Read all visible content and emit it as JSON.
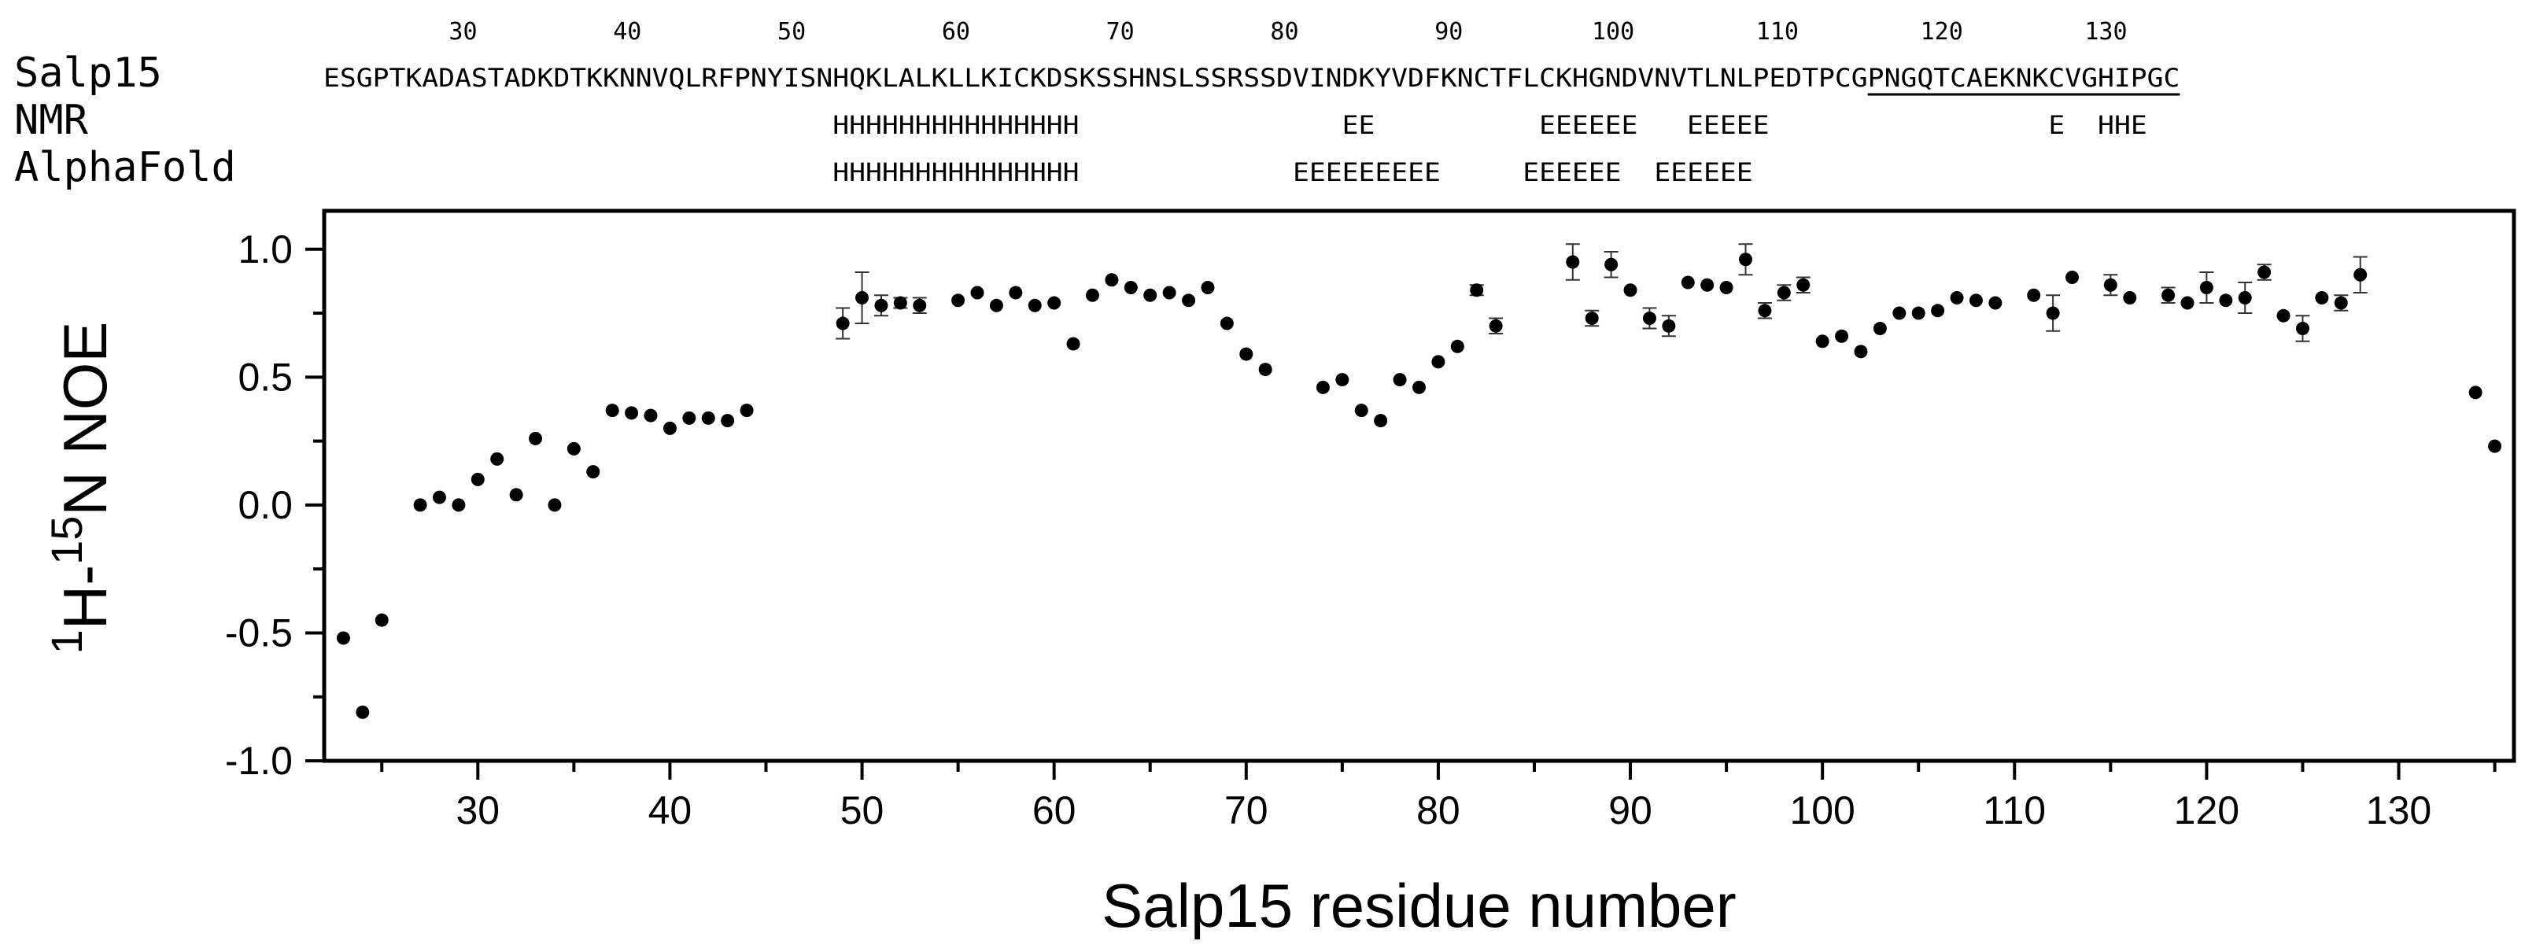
{
  "chart_data": {
    "type": "scatter",
    "xlabel": "Salp15 residue number",
    "ylabel_parts": {
      "sup1": "1",
      "h": "H-",
      "sup2": "15",
      "rest": "N NOE"
    },
    "xlim": [
      22,
      136
    ],
    "ylim": [
      -1.0,
      1.15
    ],
    "xticks": [
      30,
      40,
      50,
      60,
      70,
      80,
      90,
      100,
      110,
      120,
      130
    ],
    "yticks": [
      -1.0,
      -0.5,
      0.0,
      0.5,
      1.0
    ],
    "ytick_labels": [
      "-1.0",
      "-0.5",
      "0.0",
      "0.5",
      "1.0"
    ],
    "grid": false,
    "sequence": {
      "label": "Salp15",
      "start": 22,
      "text": "ESGPTKADASTADKDTKKNNVQLRFPNYISNHQKLALKLLKICKDSKSSHNSLSSRSSDVINDKYVDFKNCTFLCKHGNDVNVTLNLPEDTPCGPNGQTCAEKNKCVGHIPGC",
      "underline_range": [
        116,
        134
      ]
    },
    "ruler_ticks": [
      30,
      40,
      50,
      60,
      70,
      80,
      90,
      100,
      110,
      120,
      130
    ],
    "tracks": [
      {
        "label": "NMR",
        "text": "                               HHHHHHHHHHHHHHH                EE          EEEEEE   EEEEE                 E  HHE"
      },
      {
        "label": "AlphaFold",
        "text": "                               HHHHHHHHHHHHHHH             EEEEEEEEE     EEEEEE  EEEEEE"
      }
    ],
    "points": [
      {
        "x": 23,
        "y": -0.52
      },
      {
        "x": 24,
        "y": -0.81
      },
      {
        "x": 25,
        "y": -0.45
      },
      {
        "x": 27,
        "y": 0.0
      },
      {
        "x": 28,
        "y": 0.03
      },
      {
        "x": 29,
        "y": 0.0
      },
      {
        "x": 30,
        "y": 0.1
      },
      {
        "x": 31,
        "y": 0.18
      },
      {
        "x": 32,
        "y": 0.04
      },
      {
        "x": 33,
        "y": 0.26
      },
      {
        "x": 34,
        "y": 0.0
      },
      {
        "x": 35,
        "y": 0.22
      },
      {
        "x": 36,
        "y": 0.13
      },
      {
        "x": 37,
        "y": 0.37
      },
      {
        "x": 38,
        "y": 0.36
      },
      {
        "x": 39,
        "y": 0.35
      },
      {
        "x": 40,
        "y": 0.3
      },
      {
        "x": 41,
        "y": 0.34
      },
      {
        "x": 42,
        "y": 0.34
      },
      {
        "x": 43,
        "y": 0.33
      },
      {
        "x": 44,
        "y": 0.37
      },
      {
        "x": 49,
        "y": 0.71,
        "err": 0.06
      },
      {
        "x": 50,
        "y": 0.81,
        "err": 0.1
      },
      {
        "x": 51,
        "y": 0.78,
        "err": 0.04
      },
      {
        "x": 52,
        "y": 0.79,
        "err": 0.02
      },
      {
        "x": 53,
        "y": 0.78,
        "err": 0.03
      },
      {
        "x": 55,
        "y": 0.8
      },
      {
        "x": 56,
        "y": 0.83
      },
      {
        "x": 57,
        "y": 0.78
      },
      {
        "x": 58,
        "y": 0.83
      },
      {
        "x": 59,
        "y": 0.78
      },
      {
        "x": 60,
        "y": 0.79
      },
      {
        "x": 61,
        "y": 0.63
      },
      {
        "x": 62,
        "y": 0.82
      },
      {
        "x": 63,
        "y": 0.88
      },
      {
        "x": 64,
        "y": 0.85
      },
      {
        "x": 65,
        "y": 0.82
      },
      {
        "x": 66,
        "y": 0.83
      },
      {
        "x": 67,
        "y": 0.8
      },
      {
        "x": 68,
        "y": 0.85
      },
      {
        "x": 69,
        "y": 0.71
      },
      {
        "x": 70,
        "y": 0.59
      },
      {
        "x": 71,
        "y": 0.53
      },
      {
        "x": 74,
        "y": 0.46
      },
      {
        "x": 75,
        "y": 0.49
      },
      {
        "x": 76,
        "y": 0.37
      },
      {
        "x": 77,
        "y": 0.33
      },
      {
        "x": 78,
        "y": 0.49
      },
      {
        "x": 79,
        "y": 0.46
      },
      {
        "x": 80,
        "y": 0.56
      },
      {
        "x": 81,
        "y": 0.62
      },
      {
        "x": 82,
        "y": 0.84,
        "err": 0.02
      },
      {
        "x": 83,
        "y": 0.7,
        "err": 0.03
      },
      {
        "x": 87,
        "y": 0.95,
        "err": 0.07
      },
      {
        "x": 88,
        "y": 0.73,
        "err": 0.03
      },
      {
        "x": 89,
        "y": 0.94,
        "err": 0.05
      },
      {
        "x": 90,
        "y": 0.84
      },
      {
        "x": 91,
        "y": 0.73,
        "err": 0.04
      },
      {
        "x": 92,
        "y": 0.7,
        "err": 0.04
      },
      {
        "x": 93,
        "y": 0.87
      },
      {
        "x": 94,
        "y": 0.86
      },
      {
        "x": 95,
        "y": 0.85
      },
      {
        "x": 96,
        "y": 0.96,
        "err": 0.06
      },
      {
        "x": 97,
        "y": 0.76,
        "err": 0.03
      },
      {
        "x": 98,
        "y": 0.83,
        "err": 0.03
      },
      {
        "x": 99,
        "y": 0.86,
        "err": 0.03
      },
      {
        "x": 100,
        "y": 0.64
      },
      {
        "x": 101,
        "y": 0.66
      },
      {
        "x": 102,
        "y": 0.6
      },
      {
        "x": 103,
        "y": 0.69
      },
      {
        "x": 104,
        "y": 0.75
      },
      {
        "x": 105,
        "y": 0.75
      },
      {
        "x": 106,
        "y": 0.76
      },
      {
        "x": 107,
        "y": 0.81
      },
      {
        "x": 108,
        "y": 0.8
      },
      {
        "x": 109,
        "y": 0.79
      },
      {
        "x": 111,
        "y": 0.82
      },
      {
        "x": 112,
        "y": 0.75,
        "err": 0.07
      },
      {
        "x": 113,
        "y": 0.89
      },
      {
        "x": 115,
        "y": 0.86,
        "err": 0.04
      },
      {
        "x": 116,
        "y": 0.81
      },
      {
        "x": 118,
        "y": 0.82,
        "err": 0.03
      },
      {
        "x": 119,
        "y": 0.79
      },
      {
        "x": 120,
        "y": 0.85,
        "err": 0.06
      },
      {
        "x": 121,
        "y": 0.8
      },
      {
        "x": 122,
        "y": 0.81,
        "err": 0.06
      },
      {
        "x": 123,
        "y": 0.91,
        "err": 0.03
      },
      {
        "x": 124,
        "y": 0.74
      },
      {
        "x": 125,
        "y": 0.69,
        "err": 0.05
      },
      {
        "x": 126,
        "y": 0.81
      },
      {
        "x": 127,
        "y": 0.79,
        "err": 0.03
      },
      {
        "x": 128,
        "y": 0.9,
        "err": 0.07
      },
      {
        "x": 134,
        "y": 0.44
      },
      {
        "x": 135,
        "y": 0.23
      }
    ]
  }
}
